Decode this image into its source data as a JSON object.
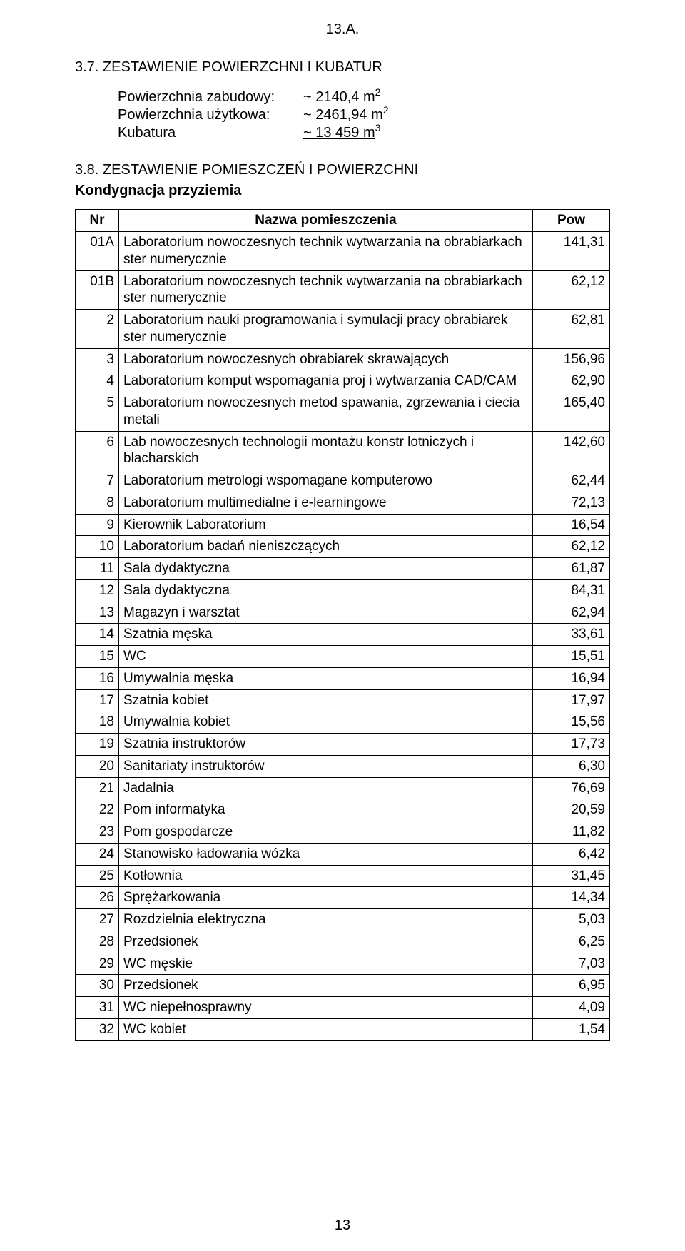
{
  "header_num": "13.A.",
  "section_title": "3.7. ZESTAWIENIE POWIERZCHNI I KUBATUR",
  "summary": {
    "rows": [
      {
        "label": "Powierzchnia zabudowy:",
        "value": "~ 2140,4  m",
        "sup": "2",
        "underline": false
      },
      {
        "label": "Powierzchnia użytkowa:",
        "value": "~ 2461,94 m",
        "sup": "2",
        "underline": false
      },
      {
        "label": "Kubatura",
        "value": "~ 13 459   m",
        "sup": "3",
        "underline": true
      }
    ]
  },
  "sub_title": "3.8. ZESTAWIENIE POMIESZCZEŃ I POWIERZCHNI",
  "kond": "Kondygnacja przyziemia",
  "table": {
    "columns": [
      "Nr",
      "Nazwa pomieszczenia",
      "Pow"
    ],
    "rows": [
      {
        "nr": "01A",
        "name": "Laboratorium nowoczesnych technik wytwarzania na obrabiarkach ster numerycznie",
        "pow": "141,31"
      },
      {
        "nr": "01B",
        "name": "Laboratorium nowoczesnych technik wytwarzania na obrabiarkach ster numerycznie",
        "pow": "62,12"
      },
      {
        "nr": "2",
        "name": "Laboratorium nauki programowania i symulacji pracy obrabiarek ster numerycznie",
        "pow": "62,81"
      },
      {
        "nr": "3",
        "name": "Laboratorium nowoczesnych obrabiarek skrawających",
        "pow": "156,96"
      },
      {
        "nr": "4",
        "name": "Laboratorium komput wspomagania proj i wytwarzania CAD/CAM",
        "pow": "62,90"
      },
      {
        "nr": "5",
        "name": "Laboratorium nowoczesnych metod spawania, zgrzewania i ciecia metali",
        "pow": "165,40"
      },
      {
        "nr": "6",
        "name": "Lab nowoczesnych technologii montażu konstr lotniczych i blacharskich",
        "pow": "142,60"
      },
      {
        "nr": "7",
        "name": "Laboratorium metrologi wspomagane komputerowo",
        "pow": "62,44"
      },
      {
        "nr": "8",
        "name": "Laboratorium multimedialne i e-learningowe",
        "pow": "72,13"
      },
      {
        "nr": "9",
        "name": "Kierownik Laboratorium",
        "pow": "16,54"
      },
      {
        "nr": "10",
        "name": "Laboratorium badań nieniszczących",
        "pow": "62,12"
      },
      {
        "nr": "11",
        "name": "Sala dydaktyczna",
        "pow": "61,87"
      },
      {
        "nr": "12",
        "name": "Sala dydaktyczna",
        "pow": "84,31"
      },
      {
        "nr": "13",
        "name": "Magazyn i warsztat",
        "pow": "62,94"
      },
      {
        "nr": "14",
        "name": "Szatnia męska",
        "pow": "33,61"
      },
      {
        "nr": "15",
        "name": "WC",
        "pow": "15,51"
      },
      {
        "nr": "16",
        "name": "Umywalnia męska",
        "pow": "16,94"
      },
      {
        "nr": "17",
        "name": "Szatnia kobiet",
        "pow": "17,97"
      },
      {
        "nr": "18",
        "name": "Umywalnia kobiet",
        "pow": "15,56"
      },
      {
        "nr": "19",
        "name": "Szatnia instruktorów",
        "pow": "17,73"
      },
      {
        "nr": "20",
        "name": "Sanitariaty instruktorów",
        "pow": "6,30"
      },
      {
        "nr": "21",
        "name": "Jadalnia",
        "pow": "76,69"
      },
      {
        "nr": "22",
        "name": "Pom informatyka",
        "pow": "20,59"
      },
      {
        "nr": "23",
        "name": "Pom gospodarcze",
        "pow": "11,82"
      },
      {
        "nr": "24",
        "name": "Stanowisko ładowania wózka",
        "pow": "6,42"
      },
      {
        "nr": "25",
        "name": "Kotłownia",
        "pow": "31,45"
      },
      {
        "nr": "26",
        "name": "Sprężarkowania",
        "pow": "14,34"
      },
      {
        "nr": "27",
        "name": "Rozdzielnia elektryczna",
        "pow": "5,03"
      },
      {
        "nr": "28",
        "name": "Przedsionek",
        "pow": "6,25"
      },
      {
        "nr": "29",
        "name": "WC męskie",
        "pow": "7,03"
      },
      {
        "nr": "30",
        "name": "Przedsionek",
        "pow": "6,95"
      },
      {
        "nr": "31",
        "name": "WC niepełnosprawny",
        "pow": "4,09"
      },
      {
        "nr": "32",
        "name": "WC kobiet",
        "pow": "1,54"
      }
    ]
  },
  "footer_num": "13"
}
